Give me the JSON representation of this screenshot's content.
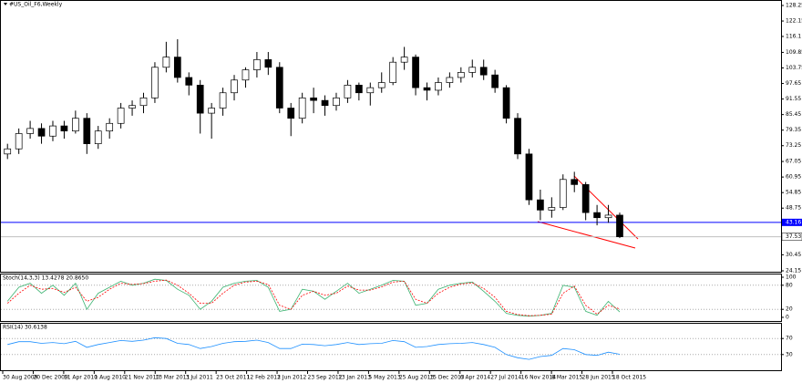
{
  "chart_data": {
    "type": "candlestick",
    "title": "#US_Oil_F6,Weekly",
    "xlabels": [
      "30 Aug 2009",
      "20 Dec 2009",
      "11 Apr 2010",
      "1 Aug 2010",
      "21 Nov 2010",
      "13 Mar 2011",
      "3 Jul 2011",
      "23 Oct 2011",
      "12 Feb 2012",
      "3 Jun 2012",
      "23 Sep 2012",
      "13 Jan 2013",
      "5 May 2013",
      "25 Aug 2013",
      "15 Dec 2013",
      "6 Apr 2014",
      "27 Jul 2014",
      "16 Nov 2014",
      "8 Mar 2015",
      "28 Jun 2015",
      "18 Oct 2015"
    ],
    "ylim": [
      24.15,
      128.25
    ],
    "yticks": [
      128.25,
      122.15,
      116.1,
      109.85,
      103.75,
      97.65,
      91.55,
      85.45,
      79.35,
      73.25,
      67.05,
      60.95,
      54.85,
      48.75,
      30.45,
      24.15
    ],
    "hline": {
      "value": 43.16,
      "color": "#0000ff"
    },
    "last_price": 37.53,
    "ohlc": [
      [
        70,
        74,
        68,
        72
      ],
      [
        72,
        80,
        70,
        78
      ],
      [
        78,
        83,
        76,
        80
      ],
      [
        80,
        82,
        74,
        77
      ],
      [
        77,
        83,
        75,
        81
      ],
      [
        81,
        83,
        76,
        79
      ],
      [
        79,
        87,
        78,
        84
      ],
      [
        84,
        86,
        70,
        74
      ],
      [
        74,
        81,
        72,
        79
      ],
      [
        79,
        84,
        76,
        82
      ],
      [
        82,
        90,
        80,
        88
      ],
      [
        88,
        91,
        85,
        89
      ],
      [
        89,
        94,
        86,
        92
      ],
      [
        92,
        106,
        90,
        104
      ],
      [
        104,
        114,
        102,
        108
      ],
      [
        108,
        115,
        98,
        100
      ],
      [
        100,
        102,
        93,
        97
      ],
      [
        97,
        99,
        78,
        86
      ],
      [
        86,
        90,
        76,
        88
      ],
      [
        88,
        96,
        85,
        94
      ],
      [
        94,
        101,
        91,
        99
      ],
      [
        99,
        104,
        96,
        103
      ],
      [
        103,
        110,
        100,
        107
      ],
      [
        107,
        110,
        101,
        104
      ],
      [
        104,
        106,
        86,
        88
      ],
      [
        88,
        90,
        77,
        84
      ],
      [
        84,
        94,
        82,
        92
      ],
      [
        92,
        96,
        86,
        91
      ],
      [
        91,
        93,
        85,
        89
      ],
      [
        89,
        94,
        87,
        92
      ],
      [
        92,
        99,
        90,
        97
      ],
      [
        97,
        98,
        91,
        94
      ],
      [
        94,
        98,
        89,
        96
      ],
      [
        96,
        102,
        94,
        98
      ],
      [
        98,
        108,
        97,
        106
      ],
      [
        106,
        112,
        103,
        108
      ],
      [
        108,
        109,
        93,
        96
      ],
      [
        96,
        98,
        91,
        95
      ],
      [
        95,
        100,
        93,
        98
      ],
      [
        98,
        102,
        96,
        100
      ],
      [
        100,
        104,
        98,
        102
      ],
      [
        102,
        107,
        100,
        104
      ],
      [
        104,
        107,
        99,
        101
      ],
      [
        101,
        103,
        94,
        96
      ],
      [
        96,
        97,
        82,
        84
      ],
      [
        84,
        86,
        68,
        70
      ],
      [
        70,
        72,
        50,
        52
      ],
      [
        52,
        56,
        44,
        48
      ],
      [
        48,
        53,
        45,
        49
      ],
      [
        49,
        62,
        48,
        60
      ],
      [
        60,
        63,
        55,
        58
      ],
      [
        58,
        59,
        44,
        47
      ],
      [
        47,
        50,
        42,
        45
      ],
      [
        45,
        50,
        43,
        46
      ],
      [
        46,
        47,
        37,
        37.53
      ]
    ],
    "stoch": {
      "label": "Stoch(14,3,3) 13.4278 20.8650",
      "ylim": [
        0,
        100
      ],
      "yticks": [
        100,
        80,
        20,
        0
      ],
      "levels": [
        80,
        20
      ],
      "main": {
        "color": "#3cb371",
        "values": [
          40,
          75,
          85,
          60,
          80,
          55,
          85,
          20,
          60,
          75,
          90,
          80,
          85,
          95,
          92,
          70,
          55,
          20,
          40,
          75,
          85,
          90,
          92,
          75,
          15,
          20,
          70,
          65,
          45,
          65,
          85,
          60,
          70,
          80,
          92,
          90,
          30,
          35,
          70,
          80,
          85,
          88,
          65,
          40,
          10,
          5,
          3,
          5,
          10,
          80,
          75,
          15,
          5,
          40,
          13.4278
        ]
      },
      "signal": {
        "color": "#ff0000",
        "values": [
          35,
          60,
          80,
          70,
          72,
          62,
          75,
          40,
          50,
          70,
          85,
          82,
          84,
          90,
          93,
          80,
          60,
          35,
          35,
          60,
          80,
          88,
          90,
          82,
          30,
          20,
          55,
          65,
          55,
          60,
          78,
          68,
          68,
          76,
          88,
          90,
          45,
          35,
          60,
          75,
          83,
          86,
          72,
          50,
          15,
          7,
          4,
          5,
          8,
          60,
          78,
          30,
          8,
          30,
          20.865
        ]
      }
    },
    "rsi": {
      "label": "RSI(14) 30.6138",
      "ylim": [
        0,
        100
      ],
      "yticks": [
        70,
        30
      ],
      "levels": [
        70,
        30
      ],
      "color": "#1e90ff",
      "values": [
        55,
        62,
        62,
        58,
        60,
        57,
        63,
        48,
        55,
        60,
        65,
        63,
        66,
        72,
        70,
        58,
        55,
        45,
        50,
        58,
        62,
        63,
        66,
        60,
        45,
        45,
        56,
        55,
        52,
        55,
        60,
        55,
        57,
        58,
        65,
        62,
        48,
        50,
        55,
        57,
        58,
        60,
        55,
        48,
        30,
        22,
        18,
        25,
        28,
        45,
        42,
        30,
        28,
        36,
        30.6138
      ]
    }
  }
}
